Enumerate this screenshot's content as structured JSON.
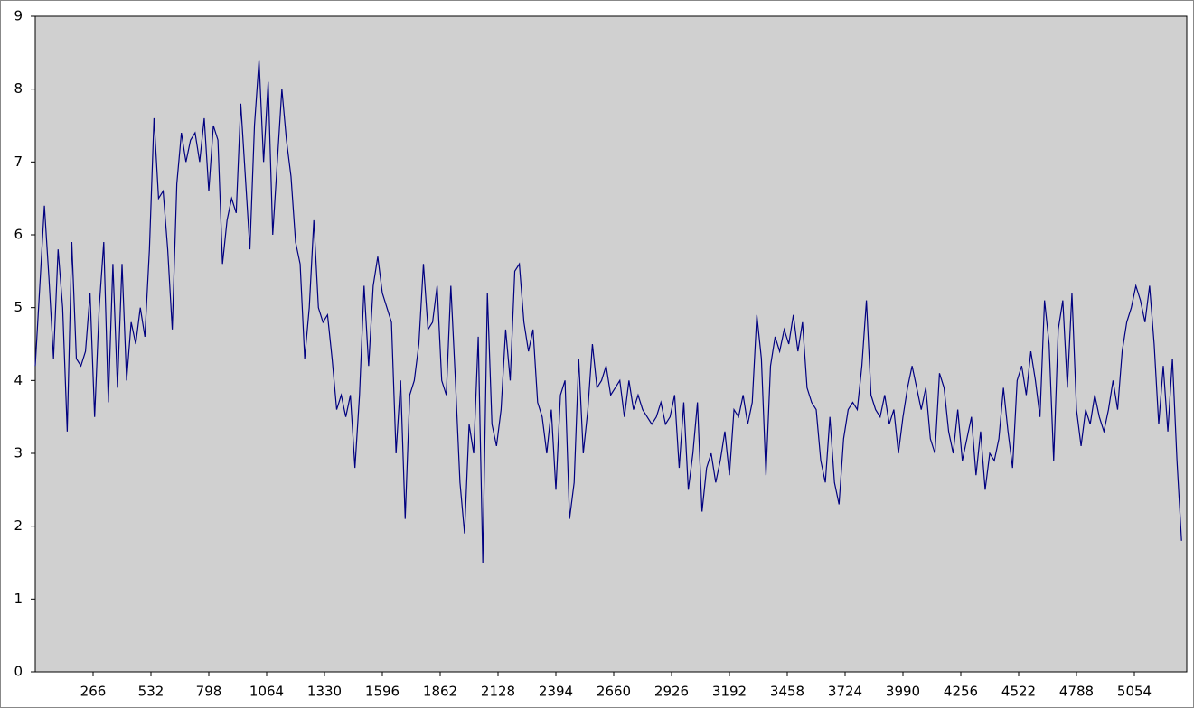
{
  "chart_data": {
    "type": "line",
    "x": [
      0,
      21,
      42,
      63,
      84,
      105,
      126,
      147,
      168,
      189,
      210,
      231,
      252,
      273,
      294,
      315,
      336,
      357,
      378,
      399,
      420,
      441,
      462,
      483,
      504,
      525,
      546,
      567,
      588,
      609,
      630,
      651,
      672,
      693,
      714,
      735,
      756,
      777,
      798,
      819,
      840,
      861,
      882,
      903,
      924,
      945,
      966,
      987,
      1008,
      1029,
      1050,
      1071,
      1092,
      1113,
      1134,
      1155,
      1176,
      1197,
      1218,
      1239,
      1260,
      1281,
      1302,
      1323,
      1344,
      1365,
      1386,
      1407,
      1428,
      1449,
      1470,
      1491,
      1512,
      1533,
      1554,
      1575,
      1596,
      1617,
      1638,
      1659,
      1680,
      1701,
      1722,
      1743,
      1764,
      1785,
      1806,
      1827,
      1848,
      1869,
      1890,
      1911,
      1932,
      1953,
      1974,
      1995,
      2016,
      2037,
      2058,
      2079,
      2100,
      2121,
      2142,
      2163,
      2184,
      2205,
      2226,
      2247,
      2268,
      2289,
      2310,
      2331,
      2352,
      2373,
      2394,
      2415,
      2436,
      2457,
      2478,
      2499,
      2520,
      2541,
      2562,
      2583,
      2604,
      2625,
      2646,
      2667,
      2688,
      2709,
      2730,
      2751,
      2772,
      2793,
      2814,
      2835,
      2856,
      2877,
      2898,
      2919,
      2940,
      2961,
      2982,
      3003,
      3024,
      3045,
      3066,
      3087,
      3108,
      3129,
      3150,
      3171,
      3192,
      3213,
      3234,
      3255,
      3276,
      3297,
      3318,
      3339,
      3360,
      3381,
      3402,
      3423,
      3444,
      3465,
      3486,
      3507,
      3528,
      3549,
      3570,
      3591,
      3612,
      3633,
      3654,
      3675,
      3696,
      3717,
      3738,
      3759,
      3780,
      3801,
      3822,
      3843,
      3864,
      3885,
      3906,
      3927,
      3948,
      3969,
      3990,
      4011,
      4032,
      4053,
      4074,
      4095,
      4116,
      4137,
      4158,
      4179,
      4200,
      4221,
      4242,
      4263,
      4284,
      4305,
      4326,
      4347,
      4368,
      4389,
      4410,
      4431,
      4452,
      4473,
      4494,
      4515,
      4536,
      4557,
      4578,
      4599,
      4620,
      4641,
      4662,
      4683,
      4704,
      4725,
      4746,
      4767,
      4788,
      4809,
      4830,
      4851,
      4872,
      4893,
      4914,
      4935,
      4956,
      4977,
      4998,
      5019,
      5040,
      5061,
      5082,
      5103,
      5124,
      5145,
      5166,
      5187,
      5208,
      5229,
      5250,
      5271
    ],
    "series": [
      {
        "color": "#000080",
        "values": [
          4.2,
          5.3,
          6.4,
          5.4,
          4.3,
          5.8,
          5.0,
          3.3,
          5.9,
          4.3,
          4.2,
          4.4,
          5.2,
          3.5,
          5.0,
          5.9,
          3.7,
          5.6,
          3.9,
          5.6,
          4.0,
          4.8,
          4.5,
          5.0,
          4.6,
          5.8,
          7.6,
          6.5,
          6.6,
          5.8,
          4.7,
          6.7,
          7.4,
          7.0,
          7.3,
          7.4,
          7.0,
          7.6,
          6.6,
          7.5,
          7.3,
          5.6,
          6.2,
          6.5,
          6.3,
          7.8,
          6.8,
          5.8,
          7.5,
          8.4,
          7.0,
          8.1,
          6.0,
          7.0,
          8.0,
          7.3,
          6.8,
          5.9,
          5.6,
          4.3,
          5.0,
          6.2,
          5.0,
          4.8,
          4.9,
          4.3,
          3.6,
          3.8,
          3.5,
          3.8,
          2.8,
          3.8,
          5.3,
          4.2,
          5.3,
          5.7,
          5.2,
          5.0,
          4.8,
          3.0,
          4.0,
          2.1,
          3.8,
          4.0,
          4.5,
          5.6,
          4.7,
          4.8,
          5.3,
          4.0,
          3.8,
          5.3,
          4.0,
          2.6,
          1.9,
          3.4,
          3.0,
          4.6,
          1.5,
          5.2,
          3.4,
          3.1,
          3.6,
          4.7,
          4.0,
          5.5,
          5.6,
          4.8,
          4.4,
          4.7,
          3.7,
          3.5,
          3.0,
          3.6,
          2.5,
          3.8,
          4.0,
          2.1,
          2.6,
          4.3,
          3.0,
          3.6,
          4.5,
          3.9,
          4.0,
          4.2,
          3.8,
          3.9,
          4.0,
          3.5,
          4.0,
          3.6,
          3.8,
          3.6,
          3.5,
          3.4,
          3.5,
          3.7,
          3.4,
          3.5,
          3.8,
          2.8,
          3.7,
          2.5,
          3.0,
          3.7,
          2.2,
          2.8,
          3.0,
          2.6,
          2.9,
          3.3,
          2.7,
          3.6,
          3.5,
          3.8,
          3.4,
          3.7,
          4.9,
          4.3,
          2.7,
          4.2,
          4.6,
          4.4,
          4.7,
          4.5,
          4.9,
          4.4,
          4.8,
          3.9,
          3.7,
          3.6,
          2.9,
          2.6,
          3.5,
          2.6,
          2.3,
          3.2,
          3.6,
          3.7,
          3.6,
          4.2,
          5.1,
          3.8,
          3.6,
          3.5,
          3.8,
          3.4,
          3.6,
          3.0,
          3.5,
          3.9,
          4.2,
          3.9,
          3.6,
          3.9,
          3.2,
          3.0,
          4.1,
          3.9,
          3.3,
          3.0,
          3.6,
          2.9,
          3.2,
          3.5,
          2.7,
          3.3,
          2.5,
          3.0,
          2.9,
          3.2,
          3.9,
          3.3,
          2.8,
          4.0,
          4.2,
          3.8,
          4.4,
          4.0,
          3.5,
          5.1,
          4.5,
          2.9,
          4.7,
          5.1,
          3.9,
          5.2,
          3.6,
          3.1,
          3.6,
          3.4,
          3.8,
          3.5,
          3.3,
          3.6,
          4.0,
          3.6,
          4.4,
          4.8,
          5.0,
          5.3,
          5.1,
          4.8,
          5.3,
          4.5,
          3.4,
          4.2,
          3.3,
          4.3,
          2.9,
          1.8
        ]
      }
    ],
    "xlim": [
      0,
      5295
    ],
    "xticks": [
      266,
      532,
      798,
      1064,
      1330,
      1596,
      1862,
      2128,
      2394,
      2660,
      2926,
      3192,
      3458,
      3724,
      3990,
      4256,
      4522,
      4788,
      5054
    ],
    "ylim": [
      0,
      9
    ],
    "yticks": [
      0,
      1,
      2,
      3,
      4,
      5,
      6,
      7,
      8,
      9
    ],
    "background": "#d0d0d0"
  }
}
